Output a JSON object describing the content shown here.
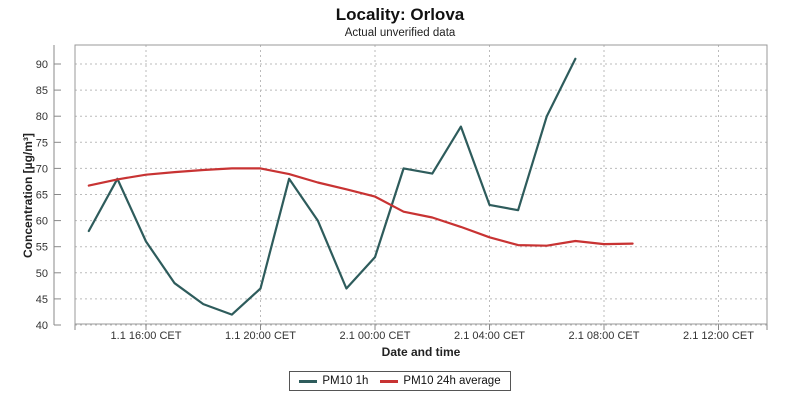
{
  "header": {
    "title": "Locality: Orlova",
    "subtitle": "Actual unverified data"
  },
  "axes": {
    "x_label": "Date and time",
    "y_label": "Concentration [µg/m³]"
  },
  "legend": {
    "items": [
      {
        "label": "PM10 1h",
        "color": "#2E5C5C"
      },
      {
        "label": "PM10 24h average",
        "color": "#C83333"
      }
    ]
  },
  "chart_data": {
    "type": "line",
    "title": "Locality: Orlova",
    "subtitle": "Actual unverified data",
    "xlabel": "Date and time",
    "ylabel": "Concentration [µg/m³]",
    "ylim": [
      40,
      90
    ],
    "grid": true,
    "legend_position": "bottom",
    "y_ticks": [
      40,
      45,
      50,
      55,
      60,
      65,
      70,
      75,
      80,
      85,
      90
    ],
    "x_tick_labels": [
      "1.1 16:00 CET",
      "1.1 20:00 CET",
      "2.1 00:00 CET",
      "2.1 04:00 CET",
      "2.1 08:00 CET",
      "2.1 12:00 CET"
    ],
    "x_tick_hours": [
      2,
      6,
      10,
      14,
      18,
      22
    ],
    "x_start": "1.1 14:00 CET",
    "x_unit": "hours since 1.1 14:00 CET",
    "series": [
      {
        "name": "PM10 1h",
        "color": "#2E5C5C",
        "x": [
          0,
          1,
          2,
          3,
          4,
          5,
          6,
          7,
          8,
          9,
          10,
          11,
          12,
          13,
          14,
          15,
          16,
          17
        ],
        "times": [
          "1.1 14:00",
          "1.1 15:00",
          "1.1 16:00",
          "1.1 17:00",
          "1.1 18:00",
          "1.1 19:00",
          "1.1 20:00",
          "1.1 21:00",
          "1.1 22:00",
          "1.1 23:00",
          "2.1 00:00",
          "2.1 01:00",
          "2.1 02:00",
          "2.1 03:00",
          "2.1 04:00",
          "2.1 05:00",
          "2.1 06:00",
          "2.1 07:00"
        ],
        "values": [
          58,
          68,
          56,
          48,
          44,
          42,
          47,
          68,
          60,
          47,
          53,
          70,
          69,
          78,
          63,
          62,
          80,
          91
        ]
      },
      {
        "name": "PM10 24h average",
        "color": "#C83333",
        "x": [
          0,
          1,
          2,
          3,
          4,
          5,
          6,
          7,
          8,
          9,
          10,
          11,
          12,
          13,
          14,
          15,
          16,
          17,
          18,
          19
        ],
        "times": [
          "1.1 14:00",
          "1.1 15:00",
          "1.1 16:00",
          "1.1 17:00",
          "1.1 18:00",
          "1.1 19:00",
          "1.1 20:00",
          "1.1 21:00",
          "1.1 22:00",
          "1.1 23:00",
          "2.1 00:00",
          "2.1 01:00",
          "2.1 02:00",
          "2.1 03:00",
          "2.1 04:00",
          "2.1 05:00",
          "2.1 06:00",
          "2.1 07:00",
          "2.1 08:00",
          "2.1 09:00"
        ],
        "values": [
          66.7,
          67.9,
          68.8,
          69.3,
          69.7,
          70,
          70,
          68.9,
          67.3,
          66,
          64.6,
          61.7,
          60.6,
          58.8,
          56.8,
          55.3,
          55.2,
          56.1,
          55.5,
          55.6
        ]
      }
    ]
  }
}
